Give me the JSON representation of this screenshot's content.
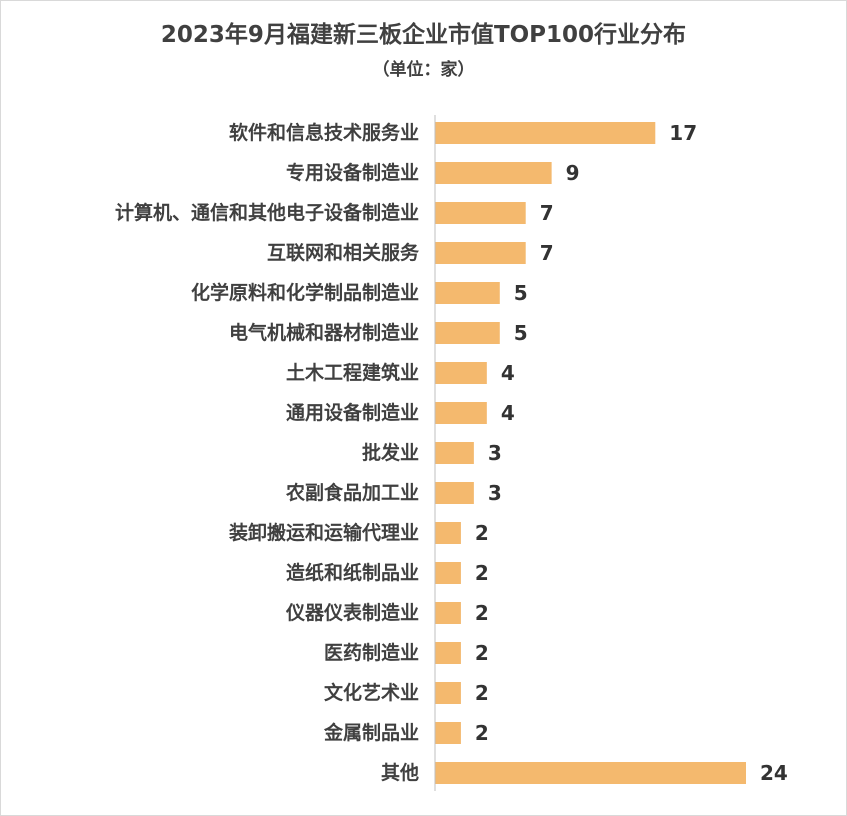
{
  "chart_data": {
    "type": "bar",
    "orientation": "horizontal",
    "title": "2023年9月福建新三板企业市值TOP100行业分布",
    "subtitle": "（单位：家）",
    "categories": [
      "软件和信息技术服务业",
      "专用设备制造业",
      "计算机、通信和其他电子设备制造业",
      "互联网和相关服务",
      "化学原料和化学制品制造业",
      "电气机械和器材制造业",
      "土木工程建筑业",
      "通用设备制造业",
      "批发业",
      "农副食品加工业",
      "装卸搬运和运输代理业",
      "造纸和纸制品业",
      "仪器仪表制造业",
      "医药制造业",
      "文化艺术业",
      "金属制品业",
      "其他"
    ],
    "values": [
      17,
      9,
      7,
      7,
      5,
      5,
      4,
      4,
      3,
      3,
      2,
      2,
      2,
      2,
      2,
      2,
      24
    ],
    "xlim": [
      0,
      24
    ],
    "bar_color": "#F4B96E",
    "data_labels": true,
    "grid": false,
    "legend": "none"
  }
}
